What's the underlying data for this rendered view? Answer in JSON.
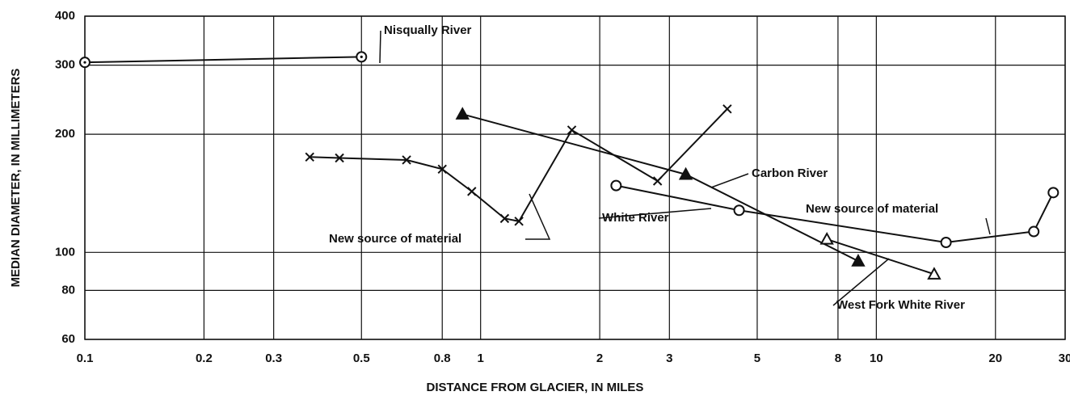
{
  "chart_data": {
    "type": "line",
    "xlabel": "DISTANCE FROM GLACIER, IN MILES",
    "ylabel": "MEDIAN DIAMETER, IN MILLIMETERS",
    "xlog": true,
    "ylog": true,
    "grid": true,
    "xlim": [
      0.1,
      30
    ],
    "ylim": [
      60,
      400
    ],
    "xticks": [
      0.1,
      0.2,
      0.3,
      0.5,
      0.8,
      1,
      2,
      3,
      5,
      8,
      10,
      20,
      30
    ],
    "yticks": [
      60,
      80,
      100,
      200,
      300,
      400
    ],
    "series": [
      {
        "name": "Nisqually River",
        "color": "#111111",
        "marker": "circle-dot",
        "x": [
          0.1,
          0.5
        ],
        "values": [
          305,
          315
        ]
      },
      {
        "name": "Carbon River",
        "color": "#111111",
        "marker": "triangle-filled",
        "x": [
          0.9,
          3.3,
          9
        ],
        "values": [
          225,
          158,
          95
        ]
      },
      {
        "color": "#111111",
        "marker": "cross",
        "x": [
          0.37,
          0.44,
          0.65,
          0.8,
          0.95,
          1.15,
          1.25,
          1.7,
          2.8,
          4.2
        ],
        "values": [
          175,
          174,
          172,
          163,
          143,
          122,
          120,
          205,
          152,
          232
        ]
      },
      {
        "name": "White River",
        "color": "#111111",
        "marker": "circle",
        "x": [
          2.2,
          4.5,
          15,
          25,
          28
        ],
        "values": [
          148,
          128,
          106,
          113,
          142
        ]
      },
      {
        "name": "West Fork White River",
        "color": "#111111",
        "marker": "triangle",
        "x": [
          7.5,
          14
        ],
        "values": [
          108,
          88
        ]
      }
    ],
    "annotations": [
      "New source of material",
      "New source of material"
    ]
  }
}
